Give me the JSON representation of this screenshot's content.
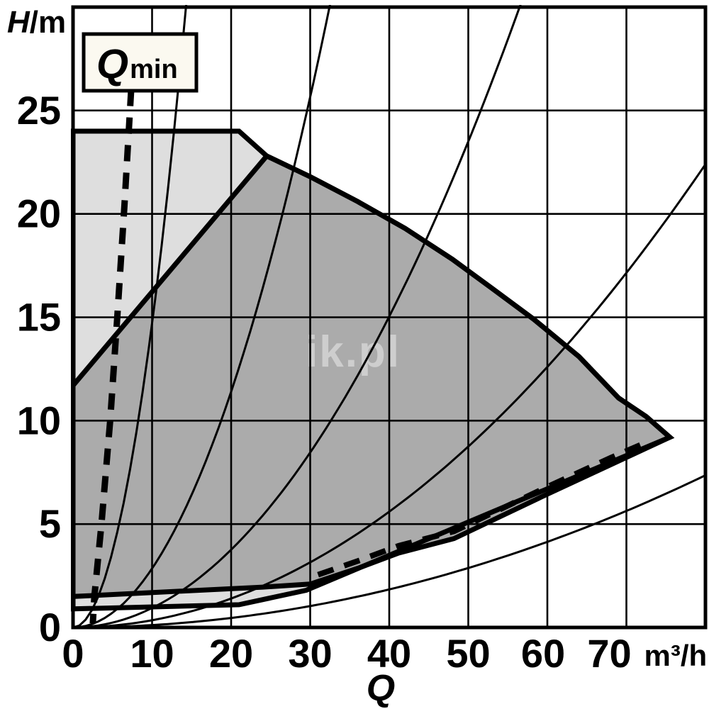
{
  "watermark": "ik.pl",
  "chart_data": {
    "type": "area",
    "xlabel": {
      "symbol": "Q",
      "unit": "m³/h"
    },
    "ylabel": {
      "symbol": "H",
      "unit": "/m"
    },
    "x_ticks": [
      "0",
      "10",
      "20",
      "30",
      "40",
      "50",
      "60",
      "70"
    ],
    "y_ticks": [
      "0",
      "5",
      "10",
      "15",
      "20",
      "25"
    ],
    "xlim": [
      0,
      80
    ],
    "ylim": [
      0,
      30
    ],
    "grid": {
      "on": true,
      "x_step": 10,
      "y_step": 5
    },
    "legend": "none",
    "colors": {
      "envelope_fill": "#dedede",
      "field_fill": "#ababab",
      "line": "#000000",
      "label_box_fill": "#fbf9f0",
      "watermark": "rgba(255,255,255,0.42)",
      "background": "#ffffff"
    },
    "qmin_label": {
      "symbol": "Q",
      "sub": "min"
    },
    "regions": [
      {
        "name": "max-speed-envelope",
        "fill_key": "envelope_fill",
        "points": [
          [
            0,
            24
          ],
          [
            21,
            24
          ],
          [
            24.5,
            22.8
          ],
          [
            30,
            21.8
          ],
          [
            36,
            20.6
          ],
          [
            42,
            19.3
          ],
          [
            48,
            17.8
          ],
          [
            53,
            16.4
          ],
          [
            58.3,
            14.9
          ],
          [
            64,
            13.1
          ],
          [
            69,
            11.1
          ],
          [
            72.5,
            10.2
          ],
          [
            75.5,
            9.2
          ],
          [
            29.5,
            1.8
          ],
          [
            21,
            1.1
          ],
          [
            0,
            0.9
          ]
        ]
      },
      {
        "name": "pump-operating-field",
        "fill_key": "field_fill",
        "points": [
          [
            0,
            11.7
          ],
          [
            24.5,
            22.8
          ],
          [
            30,
            21.8
          ],
          [
            36,
            20.6
          ],
          [
            42,
            19.3
          ],
          [
            48,
            17.8
          ],
          [
            53,
            16.4
          ],
          [
            58.3,
            14.9
          ],
          [
            64,
            13.1
          ],
          [
            69,
            11.1
          ],
          [
            72.5,
            10.2
          ],
          [
            75.5,
            9.2
          ],
          [
            60,
            6.45
          ],
          [
            48.2,
            4.3
          ],
          [
            41.2,
            3.6
          ],
          [
            36.3,
            2.9
          ],
          [
            30,
            2.1
          ],
          [
            24,
            1.95
          ],
          [
            0,
            1.5
          ]
        ]
      }
    ],
    "system_curves_k": [
      0.147,
      0.0285,
      0.0094,
      0.0035,
      0.00115
    ],
    "qmin_curve_points": [
      [
        7.35,
        26
      ],
      [
        6.5,
        20.4
      ],
      [
        5.6,
        15
      ],
      [
        4.7,
        10
      ],
      [
        3.6,
        5
      ],
      [
        2.7,
        1.5
      ],
      [
        2.5,
        0.2
      ]
    ],
    "min_flow_dashed_points": [
      [
        31,
        2.55
      ],
      [
        36.3,
        3.25
      ],
      [
        41.2,
        3.95
      ],
      [
        48.2,
        4.65
      ],
      [
        60,
        6.8
      ],
      [
        68,
        8.2
      ],
      [
        72.5,
        8.95
      ]
    ]
  }
}
